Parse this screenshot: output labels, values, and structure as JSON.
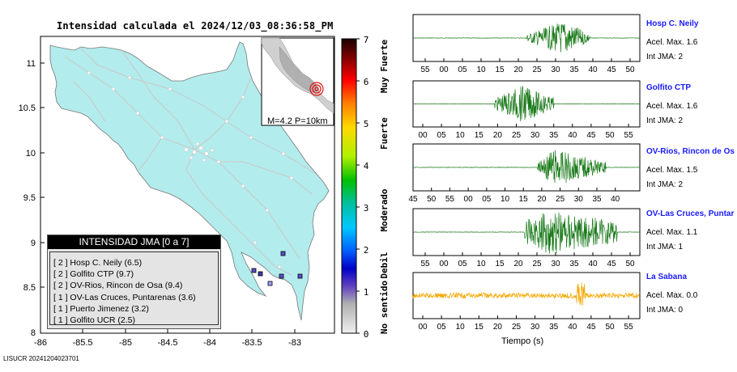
{
  "title": "Intensidad calculada el 2024/12/03_08:36:58_PM",
  "footer": "LISUCR 20241204023701",
  "map": {
    "y_ticks": [
      "11",
      "10.5",
      "10",
      "9.5",
      "9",
      "8.5",
      "8"
    ],
    "x_ticks": [
      "-86",
      "-85.5",
      "-85",
      "-84.5",
      "-84",
      "-83.5",
      "-83"
    ],
    "land_color": "#b3ecec",
    "inset_caption": "M=4.2 P=10km"
  },
  "scale": {
    "ticks": [
      "7",
      "6",
      "5",
      "4",
      "3",
      "2",
      "1",
      "0"
    ],
    "labels": [
      "Muy Fuerte",
      "Fuerte",
      "Moderado",
      "Debil",
      "No sentido"
    ]
  },
  "legend": {
    "header": "INTENSIDAD JMA [0 a 7]",
    "rows": [
      "[ 2 ]  Hosp C. Neily (6.5)",
      "[ 2 ]  Golfito CTP (9.7)",
      "[ 2 ]  OV-Rios, Rincon de Osa (9.4)",
      "[ 1 ]  OV-Las Cruces, Puntarenas (3.6)",
      "[ 1 ]  Puerto Jimenez (3.2)",
      "[ 1 ]  Golfito UCR (2.5)"
    ]
  },
  "traces": [
    {
      "name": "Hosp C. Neily",
      "acel": "Acel. Max. 1.6",
      "int": "Int JMA: 2",
      "color": "#1a7a1a",
      "ticks": [
        "55",
        "00",
        "05",
        "10",
        "15",
        "20",
        "25",
        "30",
        "35",
        "40",
        "45",
        "50"
      ]
    },
    {
      "name": "Golfito CTP",
      "acel": "Acel. Max. 1.6",
      "int": "Int JMA: 2",
      "color": "#1a7a1a",
      "ticks": [
        "00",
        "05",
        "10",
        "15",
        "20",
        "25",
        "30",
        "35",
        "40",
        "45",
        "50",
        "55"
      ]
    },
    {
      "name": "OV-Rios, Rincon de Os",
      "acel": "Acel. Max. 1.5",
      "int": "Int JMA: 2",
      "color": "#1a7a1a",
      "ticks": [
        "45",
        "50",
        "55",
        "00",
        "05",
        "10",
        "15",
        "20",
        "25",
        "30",
        "35",
        "40"
      ]
    },
    {
      "name": "OV-Las Cruces, Puntar",
      "acel": "Acel. Max. 1.1",
      "int": "Int JMA: 1",
      "color": "#1a7a1a",
      "ticks": [
        "55",
        "00",
        "05",
        "10",
        "15",
        "20",
        "25",
        "30",
        "35",
        "40",
        "45",
        "50"
      ]
    },
    {
      "name": "La Sabana",
      "acel": "Acel. Max. 0.0",
      "int": "Int JMA: 0",
      "color": "#f5a800",
      "ticks": [
        "00",
        "05",
        "10",
        "15",
        "20",
        "25",
        "30",
        "35",
        "40",
        "45",
        "50",
        "55"
      ]
    }
  ],
  "time_label": "Tiempo (s)"
}
